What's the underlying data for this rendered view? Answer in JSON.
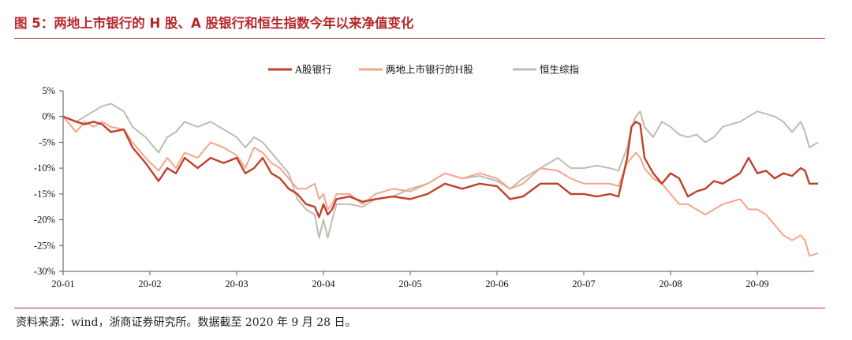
{
  "header": {
    "title": "图 5：两地上市银行的 H 股、A 股银行和恒生指数今年以来净值变化"
  },
  "footer": {
    "source": "资料来源：wind，浙商证券研究所。数据截至 2020 年 9 月 28 日。"
  },
  "colors": {
    "accent": "#b8272a",
    "a_share": "#c0402a",
    "h_share": "#f4a58a",
    "hsi": "#bdbcb3"
  },
  "chart_data": {
    "type": "line",
    "title": "",
    "xlabel": "",
    "ylabel": "",
    "x_ticks": [
      "20-01",
      "20-02",
      "20-03",
      "20-04",
      "20-05",
      "20-06",
      "20-07",
      "20-08",
      "20-09"
    ],
    "y_ticks": [
      "5%",
      "0%",
      "-5%",
      "-10%",
      "-15%",
      "-20%",
      "-25%",
      "-30%"
    ],
    "ylim": [
      -30,
      5
    ],
    "x_unit": "month index (0 = 20-01 start)",
    "xlim": [
      0,
      8.7
    ],
    "legend_position": "top-center",
    "grid": false,
    "series": [
      {
        "name": "A股银行",
        "color": "#c0402a",
        "points": [
          [
            0,
            0
          ],
          [
            0.15,
            -1
          ],
          [
            0.25,
            -1.5
          ],
          [
            0.35,
            -1
          ],
          [
            0.45,
            -1.5
          ],
          [
            0.55,
            -3
          ],
          [
            0.7,
            -2.5
          ],
          [
            0.8,
            -6
          ],
          [
            0.95,
            -9
          ],
          [
            1.1,
            -12.5
          ],
          [
            1.2,
            -10
          ],
          [
            1.3,
            -11
          ],
          [
            1.4,
            -8
          ],
          [
            1.55,
            -10
          ],
          [
            1.7,
            -8
          ],
          [
            1.85,
            -9
          ],
          [
            2.0,
            -8
          ],
          [
            2.1,
            -11
          ],
          [
            2.2,
            -10
          ],
          [
            2.3,
            -8
          ],
          [
            2.4,
            -11
          ],
          [
            2.5,
            -12
          ],
          [
            2.6,
            -14
          ],
          [
            2.7,
            -15
          ],
          [
            2.8,
            -17
          ],
          [
            2.9,
            -17.5
          ],
          [
            2.95,
            -19.5
          ],
          [
            3.0,
            -17
          ],
          [
            3.05,
            -19
          ],
          [
            3.1,
            -18
          ],
          [
            3.15,
            -16
          ],
          [
            3.3,
            -15.5
          ],
          [
            3.45,
            -16.5
          ],
          [
            3.6,
            -16
          ],
          [
            3.8,
            -15.5
          ],
          [
            4.0,
            -16
          ],
          [
            4.2,
            -15
          ],
          [
            4.4,
            -13
          ],
          [
            4.6,
            -14
          ],
          [
            4.8,
            -13
          ],
          [
            5.0,
            -13.5
          ],
          [
            5.15,
            -16
          ],
          [
            5.3,
            -15.5
          ],
          [
            5.5,
            -13
          ],
          [
            5.7,
            -13
          ],
          [
            5.85,
            -15
          ],
          [
            6.0,
            -15
          ],
          [
            6.15,
            -15.5
          ],
          [
            6.3,
            -15
          ],
          [
            6.4,
            -15.5
          ],
          [
            6.5,
            -8
          ],
          [
            6.55,
            -2
          ],
          [
            6.6,
            -1
          ],
          [
            6.65,
            -1.5
          ],
          [
            6.7,
            -8
          ],
          [
            6.8,
            -11
          ],
          [
            6.9,
            -13
          ],
          [
            7.0,
            -11
          ],
          [
            7.1,
            -12
          ],
          [
            7.2,
            -15.5
          ],
          [
            7.3,
            -14.5
          ],
          [
            7.4,
            -14
          ],
          [
            7.5,
            -12.5
          ],
          [
            7.6,
            -13
          ],
          [
            7.8,
            -11
          ],
          [
            7.9,
            -8
          ],
          [
            8.0,
            -11
          ],
          [
            8.1,
            -10.5
          ],
          [
            8.2,
            -12
          ],
          [
            8.3,
            -11
          ],
          [
            8.4,
            -11.5
          ],
          [
            8.5,
            -10
          ],
          [
            8.55,
            -10.5
          ],
          [
            8.6,
            -13
          ],
          [
            8.7,
            -13
          ]
        ]
      },
      {
        "name": "两地上市银行的H股",
        "color": "#f4a58a",
        "points": [
          [
            0,
            0
          ],
          [
            0.15,
            -3
          ],
          [
            0.25,
            -1
          ],
          [
            0.35,
            -2
          ],
          [
            0.45,
            -1
          ],
          [
            0.55,
            -2
          ],
          [
            0.7,
            -2.5
          ],
          [
            0.8,
            -5
          ],
          [
            0.95,
            -8
          ],
          [
            1.1,
            -10.5
          ],
          [
            1.2,
            -8
          ],
          [
            1.3,
            -10
          ],
          [
            1.4,
            -7
          ],
          [
            1.55,
            -8
          ],
          [
            1.7,
            -5
          ],
          [
            1.85,
            -6
          ],
          [
            2.0,
            -7.5
          ],
          [
            2.1,
            -10
          ],
          [
            2.2,
            -6
          ],
          [
            2.3,
            -7
          ],
          [
            2.4,
            -9
          ],
          [
            2.5,
            -10
          ],
          [
            2.6,
            -12
          ],
          [
            2.7,
            -14
          ],
          [
            2.8,
            -14
          ],
          [
            2.9,
            -13
          ],
          [
            2.95,
            -16
          ],
          [
            3.0,
            -15
          ],
          [
            3.05,
            -18
          ],
          [
            3.1,
            -17
          ],
          [
            3.15,
            -15
          ],
          [
            3.3,
            -15
          ],
          [
            3.45,
            -17
          ],
          [
            3.6,
            -15
          ],
          [
            3.8,
            -14
          ],
          [
            4.0,
            -14.5
          ],
          [
            4.2,
            -13
          ],
          [
            4.4,
            -11
          ],
          [
            4.6,
            -12
          ],
          [
            4.8,
            -11
          ],
          [
            5.0,
            -12
          ],
          [
            5.15,
            -14
          ],
          [
            5.3,
            -13
          ],
          [
            5.5,
            -10
          ],
          [
            5.7,
            -10.5
          ],
          [
            5.85,
            -12
          ],
          [
            6.0,
            -13
          ],
          [
            6.15,
            -13
          ],
          [
            6.3,
            -13
          ],
          [
            6.4,
            -13.5
          ],
          [
            6.5,
            -9
          ],
          [
            6.55,
            -8
          ],
          [
            6.6,
            -7
          ],
          [
            6.65,
            -8
          ],
          [
            6.7,
            -10
          ],
          [
            6.8,
            -12
          ],
          [
            6.9,
            -13
          ],
          [
            7.0,
            -15
          ],
          [
            7.1,
            -17
          ],
          [
            7.2,
            -17
          ],
          [
            7.3,
            -18
          ],
          [
            7.4,
            -19
          ],
          [
            7.5,
            -18
          ],
          [
            7.6,
            -17
          ],
          [
            7.8,
            -16
          ],
          [
            7.9,
            -18
          ],
          [
            8.0,
            -18
          ],
          [
            8.1,
            -19
          ],
          [
            8.2,
            -21
          ],
          [
            8.3,
            -23
          ],
          [
            8.4,
            -24
          ],
          [
            8.5,
            -23
          ],
          [
            8.55,
            -24
          ],
          [
            8.6,
            -27
          ],
          [
            8.7,
            -26.5
          ]
        ]
      },
      {
        "name": "恒生综指",
        "color": "#bdbcb3",
        "points": [
          [
            0,
            0
          ],
          [
            0.15,
            -1
          ],
          [
            0.25,
            0
          ],
          [
            0.35,
            1
          ],
          [
            0.45,
            2
          ],
          [
            0.55,
            2.5
          ],
          [
            0.7,
            1
          ],
          [
            0.8,
            -2
          ],
          [
            0.95,
            -4
          ],
          [
            1.1,
            -7
          ],
          [
            1.2,
            -4
          ],
          [
            1.3,
            -3
          ],
          [
            1.4,
            -1
          ],
          [
            1.55,
            -2
          ],
          [
            1.7,
            -1
          ],
          [
            1.85,
            -2.5
          ],
          [
            2.0,
            -4
          ],
          [
            2.1,
            -6
          ],
          [
            2.2,
            -4
          ],
          [
            2.3,
            -5
          ],
          [
            2.4,
            -7
          ],
          [
            2.5,
            -9
          ],
          [
            2.6,
            -11
          ],
          [
            2.7,
            -16
          ],
          [
            2.8,
            -18
          ],
          [
            2.9,
            -19
          ],
          [
            2.95,
            -23.5
          ],
          [
            3.0,
            -20
          ],
          [
            3.05,
            -23.5
          ],
          [
            3.1,
            -20
          ],
          [
            3.15,
            -17
          ],
          [
            3.3,
            -17
          ],
          [
            3.45,
            -17.5
          ],
          [
            3.6,
            -16
          ],
          [
            3.8,
            -15.5
          ],
          [
            4.0,
            -14
          ],
          [
            4.2,
            -13
          ],
          [
            4.4,
            -11
          ],
          [
            4.6,
            -12
          ],
          [
            4.8,
            -11.5
          ],
          [
            5.0,
            -12.5
          ],
          [
            5.15,
            -14
          ],
          [
            5.3,
            -12
          ],
          [
            5.5,
            -10
          ],
          [
            5.7,
            -8
          ],
          [
            5.85,
            -10
          ],
          [
            6.0,
            -10
          ],
          [
            6.15,
            -9.5
          ],
          [
            6.3,
            -10
          ],
          [
            6.4,
            -10.5
          ],
          [
            6.5,
            -6
          ],
          [
            6.55,
            -2
          ],
          [
            6.6,
            0
          ],
          [
            6.65,
            1
          ],
          [
            6.7,
            -2
          ],
          [
            6.8,
            -4
          ],
          [
            6.9,
            -1
          ],
          [
            7.0,
            -2
          ],
          [
            7.1,
            -3.5
          ],
          [
            7.2,
            -4
          ],
          [
            7.3,
            -3.5
          ],
          [
            7.4,
            -5
          ],
          [
            7.5,
            -4
          ],
          [
            7.6,
            -2
          ],
          [
            7.8,
            -1
          ],
          [
            7.9,
            0
          ],
          [
            8.0,
            1
          ],
          [
            8.1,
            0.5
          ],
          [
            8.2,
            0
          ],
          [
            8.3,
            -1
          ],
          [
            8.4,
            -3
          ],
          [
            8.5,
            -1
          ],
          [
            8.55,
            -3
          ],
          [
            8.6,
            -6
          ],
          [
            8.7,
            -5
          ]
        ]
      }
    ]
  }
}
